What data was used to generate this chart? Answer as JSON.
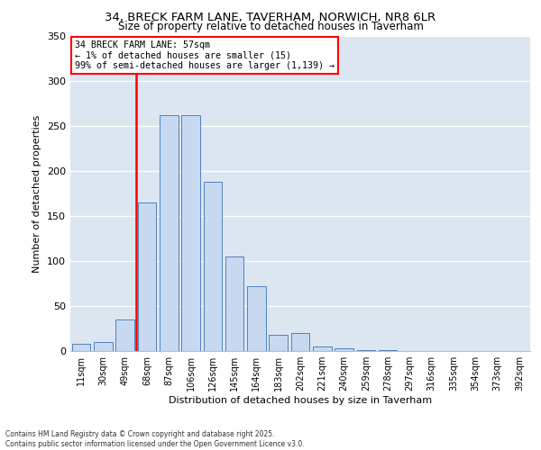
{
  "title_line1": "34, BRECK FARM LANE, TAVERHAM, NORWICH, NR8 6LR",
  "title_line2": "Size of property relative to detached houses in Taverham",
  "xlabel": "Distribution of detached houses by size in Taverham",
  "ylabel": "Number of detached properties",
  "annotation_title": "34 BRECK FARM LANE: 57sqm",
  "annotation_line1": "← 1% of detached houses are smaller (15)",
  "annotation_line2": "99% of semi-detached houses are larger (1,139) →",
  "footer_line1": "Contains HM Land Registry data © Crown copyright and database right 2025.",
  "footer_line2": "Contains public sector information licensed under the Open Government Licence v3.0.",
  "categories": [
    "11sqm",
    "30sqm",
    "49sqm",
    "68sqm",
    "87sqm",
    "106sqm",
    "126sqm",
    "145sqm",
    "164sqm",
    "183sqm",
    "202sqm",
    "221sqm",
    "240sqm",
    "259sqm",
    "278sqm",
    "297sqm",
    "316sqm",
    "335sqm",
    "354sqm",
    "373sqm",
    "392sqm"
  ],
  "values": [
    8,
    10,
    35,
    165,
    262,
    262,
    188,
    105,
    72,
    18,
    20,
    5,
    3,
    1,
    1,
    0,
    0,
    0,
    0,
    0,
    0
  ],
  "bar_color": "#c6d9f1",
  "bar_edge_color": "#4f81bd",
  "vline_color": "red",
  "annotation_box_color": "red",
  "background_color": "#ffffff",
  "plot_background": "#dce6f1",
  "ylim": [
    0,
    350
  ],
  "yticks": [
    0,
    50,
    100,
    150,
    200,
    250,
    300,
    350
  ]
}
